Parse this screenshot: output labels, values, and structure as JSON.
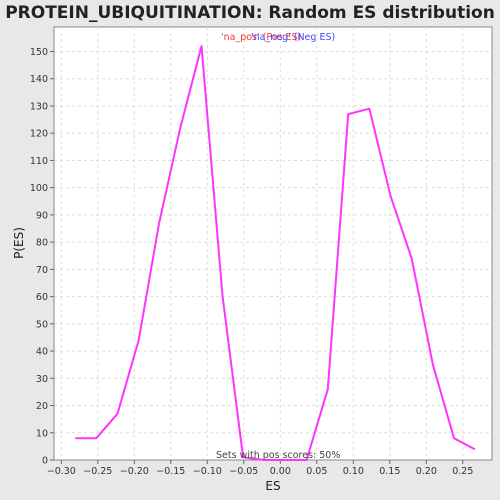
{
  "chart_data": {
    "type": "line",
    "title": "PROTEIN_UBIQUITINATION: Random ES distribution",
    "xlabel": "ES",
    "ylabel": "P(ES)",
    "xlim": [
      -0.31,
      0.29
    ],
    "ylim": [
      0,
      159
    ],
    "x_ticks": [
      -0.3,
      -0.25,
      -0.2,
      -0.15,
      -0.1,
      -0.05,
      0.0,
      0.05,
      0.1,
      0.15,
      0.2,
      0.25
    ],
    "x_tick_labels": [
      "−0.30",
      "−0.25",
      "−0.20",
      "−0.15",
      "−0.10",
      "−0.05",
      "0.00",
      "0.05",
      "0.10",
      "0.15",
      "0.20",
      "0.25"
    ],
    "y_ticks": [
      0,
      10,
      20,
      30,
      40,
      50,
      60,
      70,
      80,
      90,
      100,
      110,
      120,
      130,
      140,
      150
    ],
    "y_tick_labels": [
      "0",
      "10",
      "20",
      "30",
      "40",
      "50",
      "60",
      "70",
      "80",
      "90",
      "100",
      "110",
      "120",
      "130",
      "140",
      "150"
    ],
    "grid": true,
    "legend": {
      "placement": "top-center",
      "entries": [
        {
          "label": "'na_pos' (Pos ES)",
          "color": "#ff3333"
        },
        {
          "label": "'na_neg' (Neg ES)",
          "color": "#4444ff"
        }
      ]
    },
    "annotation": "Sets with pos scores: 50%",
    "series": [
      {
        "color": "#ff33ff",
        "x": [
          -0.28,
          -0.252,
          -0.223,
          -0.194,
          -0.166,
          -0.137,
          -0.108,
          -0.079,
          -0.051,
          -0.022,
          0.007,
          0.036,
          0.065,
          0.093,
          0.122,
          0.151,
          0.18,
          0.209,
          0.238,
          0.266
        ],
        "y": [
          8,
          8,
          17,
          44,
          87,
          122,
          152,
          60,
          1,
          0,
          0,
          0,
          26,
          127,
          129,
          97,
          74,
          35,
          8,
          4
        ]
      }
    ]
  }
}
